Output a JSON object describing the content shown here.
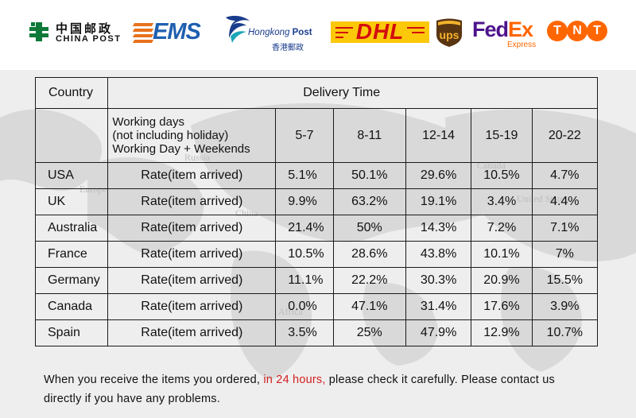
{
  "logos": {
    "china_post": {
      "cn": "中国邮政",
      "en": "CHINA POST"
    },
    "ems": {
      "text": "EMS"
    },
    "hongkong_post": {
      "en_italic": "Hongkong",
      "en_bold": "Post",
      "cn": "香港郵政"
    },
    "dhl": {
      "text": "DHL"
    },
    "ups": {
      "text": "ups"
    },
    "fedex": {
      "fed": "Fed",
      "ex": "Ex",
      "sub": "Express"
    },
    "tnt": {
      "letters": [
        "T",
        "N",
        "T"
      ]
    }
  },
  "colors": {
    "ems_blue": "#1f5fb0",
    "ems_orange": "#e8721c",
    "dhl_yellow": "#fcc80a",
    "dhl_red": "#d30d0d",
    "ups_brown": "#5a3512",
    "ups_gold": "#f3b32c",
    "fedex_purple": "#4d148c",
    "fedex_orange": "#ff6600",
    "tnt_orange": "#ff6600",
    "highlight_red": "#d21f1f"
  },
  "table": {
    "country_header": "Country",
    "delivery_header": "Delivery Time",
    "working_days": [
      "Working days",
      "(not including holiday)",
      "Working Day + Weekends"
    ],
    "ranges": [
      "5-7",
      "8-11",
      "12-14",
      "15-19",
      "20-22"
    ],
    "rows": [
      {
        "country": "USA",
        "label": "Rate(item arrived)",
        "values": [
          "5.1%",
          "50.1%",
          "29.6%",
          "10.5%",
          "4.7%"
        ]
      },
      {
        "country": "UK",
        "label": "Rate(item arrived)",
        "values": [
          "9.9%",
          "63.2%",
          "19.1%",
          "3.4%",
          "4.4%"
        ]
      },
      {
        "country": "Australia",
        "label": "Rate(item arrived)",
        "values": [
          "21.4%",
          "50%",
          "14.3%",
          "7.2%",
          "7.1%"
        ]
      },
      {
        "country": "France",
        "label": "Rate(item arrived)",
        "values": [
          "10.5%",
          "28.6%",
          "43.8%",
          "10.1%",
          "7%"
        ]
      },
      {
        "country": "Germany",
        "label": "Rate(item arrived)",
        "values": [
          "11.1%",
          "22.2%",
          "30.3%",
          "20.9%",
          "15.5%"
        ]
      },
      {
        "country": "Canada",
        "label": "Rate(item arrived)",
        "values": [
          "0.0%",
          "47.1%",
          "31.4%",
          "17.6%",
          "3.9%"
        ]
      },
      {
        "country": "Spain",
        "label": "Rate(item arrived)",
        "values": [
          "3.5%",
          "25%",
          "47.9%",
          "12.9%",
          "10.7%"
        ]
      }
    ]
  },
  "map_labels": [
    "Europe",
    "China",
    "Russia",
    "United States",
    "Canada",
    "Africa"
  ],
  "footer": {
    "line1_before": "When you receive the items you ordered, ",
    "line1_highlight": "in 24 hours,",
    "line1_after": " please check it carefully. Please contact us",
    "line2": "directly if you have any problems."
  }
}
